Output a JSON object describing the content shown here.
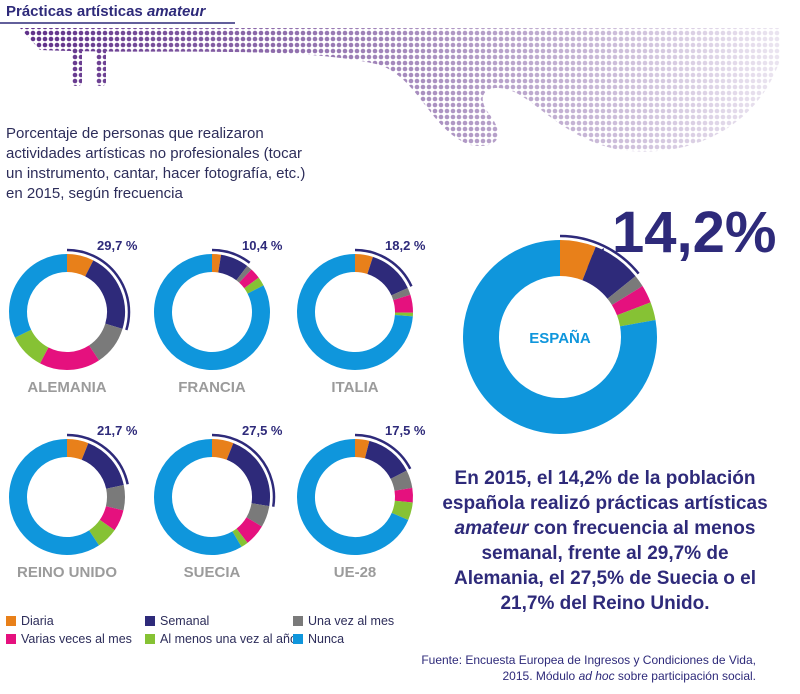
{
  "title": [
    "Prácticas artísticas ",
    "amateur"
  ],
  "subtitle": "Porcentaje de personas que realizaron actividades artísticas no profesionales (tocar un instrumento, cantar, hacer fotografía, etc.) en 2015, según frecuencia",
  "legend": {
    "labels": [
      "Diaria",
      "Semanal",
      "Una vez al mes",
      "Varias veces al mes",
      "Al menos una vez al año",
      "Nunca"
    ],
    "colors": [
      "#e8801a",
      "#2e2a7a",
      "#7a7a7a",
      "#e5117e",
      "#86c234",
      "#0f96dc"
    ]
  },
  "chart_data": [
    {
      "type": "pie",
      "title": "ALEMANIA",
      "values": [
        7.5,
        22.2,
        11,
        17,
        10,
        32.3
      ],
      "highlight": {
        "value": 29.7,
        "label": "29,7 %"
      }
    },
    {
      "type": "pie",
      "title": "FRANCIA",
      "values": [
        2.5,
        7.9,
        1.5,
        3,
        2.5,
        82.6
      ],
      "highlight": {
        "value": 10.4,
        "label": "10,4 %"
      }
    },
    {
      "type": "pie",
      "title": "ITALIA",
      "values": [
        5,
        13.2,
        2,
        5,
        1,
        73.8
      ],
      "highlight": {
        "value": 18.2,
        "label": "18,2 %"
      }
    },
    {
      "type": "pie",
      "title": "REINO UNIDO",
      "values": [
        6,
        15.7,
        7,
        6,
        6,
        59.3
      ],
      "highlight": {
        "value": 21.7,
        "label": "21,7 %"
      }
    },
    {
      "type": "pie",
      "title": "SUECIA",
      "values": [
        6,
        21.5,
        6,
        6,
        2,
        58.5
      ],
      "highlight": {
        "value": 27.5,
        "label": "27,5 %"
      }
    },
    {
      "type": "pie",
      "title": "UE-28",
      "values": [
        4,
        13.5,
        5,
        4,
        5,
        68.5
      ],
      "highlight": {
        "value": 17.5,
        "label": "17,5 %"
      }
    },
    {
      "type": "pie",
      "title": "ESPAÑA",
      "values": [
        6,
        8.2,
        2,
        3,
        3,
        77.8
      ],
      "highlight": {
        "value": 14.2,
        "label": "14,2%"
      }
    }
  ],
  "summary": [
    "En 2015, el 14,2% de la población española realizó prácticas artísticas ",
    "amateur",
    " con frecuencia al menos semanal, frente al 29,7% de Alemania, el 27,5% de Suecia o el 21,7% del Reino Unido."
  ],
  "source": [
    "Fuente: Encuesta Europea de Ingresos y Condiciones de Vida, 2015. Módulo ",
    "ad hoc",
    " sobre participación social."
  ]
}
